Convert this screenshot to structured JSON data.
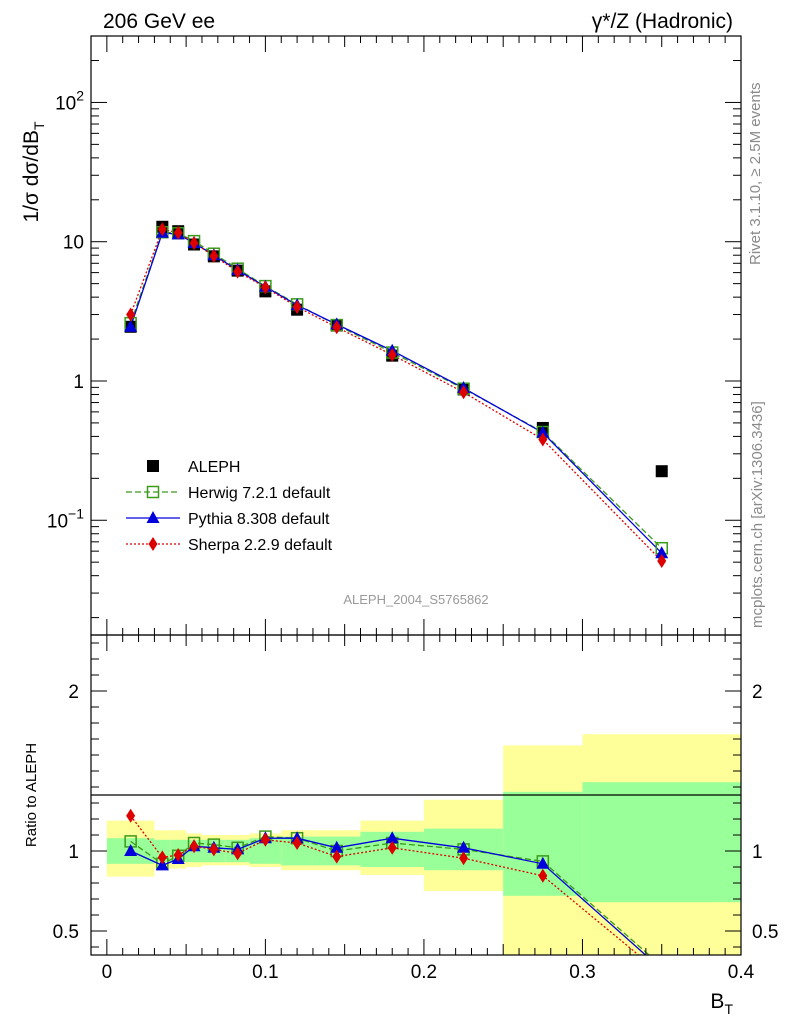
{
  "header": {
    "left": "206 GeV ee",
    "right": "γ*/Z (Hadronic)"
  },
  "side_labels": {
    "rivet": "Rivet 3.1.10, ≥ 2.5M events",
    "mcplots": "mcplots.cern.ch [arXiv:1306.3436]"
  },
  "watermark": "ALEPH_2004_S5765862",
  "colors": {
    "aleph": "#000000",
    "herwig": "#3a9a1a",
    "pythia": "#0000dd",
    "sherpa": "#dd0000",
    "band_inner": "#99ff99",
    "band_outer": "#ffff99"
  },
  "chart_data": [
    {
      "type": "scatter",
      "panel": "main",
      "ylabel": "1/σ  dσ/dB_T",
      "yscale": "log",
      "xlim": [
        -0.01,
        0.4
      ],
      "ylim": [
        0.015,
        300
      ],
      "y_ticks": [
        {
          "value": 0.1,
          "label": "10^-1"
        },
        {
          "value": 1,
          "label": "1"
        },
        {
          "value": 10,
          "label": "10"
        },
        {
          "value": 100,
          "label": "10^2"
        }
      ],
      "legend_position": "bottom-left",
      "series": [
        {
          "name": "ALEPH",
          "x": [
            0.015,
            0.035,
            0.045,
            0.055,
            0.0675,
            0.0825,
            0.1,
            0.12,
            0.145,
            0.18,
            0.225,
            0.275,
            0.35
          ],
          "y": [
            2.45,
            12.8,
            11.9,
            9.55,
            7.85,
            6.2,
            4.4,
            3.25,
            2.5,
            1.52,
            0.87,
            0.46,
            0.225
          ]
        },
        {
          "name": "Herwig 7.2.1 default",
          "x": [
            0.015,
            0.035,
            0.045,
            0.055,
            0.0675,
            0.0825,
            0.1,
            0.12,
            0.145,
            0.18,
            0.225,
            0.275,
            0.35
          ],
          "y": [
            2.6,
            11.7,
            11.5,
            10.1,
            8.2,
            6.4,
            4.8,
            3.55,
            2.52,
            1.6,
            0.88,
            0.43,
            0.063
          ]
        },
        {
          "name": "Pythia 8.308 default",
          "x": [
            0.015,
            0.035,
            0.045,
            0.055,
            0.0675,
            0.0825,
            0.1,
            0.12,
            0.145,
            0.18,
            0.225,
            0.275,
            0.35
          ],
          "y": [
            2.45,
            11.6,
            11.3,
            9.8,
            8.0,
            6.25,
            4.75,
            3.5,
            2.55,
            1.65,
            0.89,
            0.425,
            0.058
          ]
        },
        {
          "name": "Sherpa 2.2.9 default",
          "x": [
            0.015,
            0.035,
            0.045,
            0.055,
            0.0675,
            0.0825,
            0.1,
            0.12,
            0.145,
            0.18,
            0.225,
            0.275,
            0.35
          ],
          "y": [
            3.0,
            12.3,
            11.6,
            9.8,
            7.9,
            6.1,
            4.7,
            3.4,
            2.43,
            1.54,
            0.83,
            0.38,
            0.051
          ]
        }
      ]
    },
    {
      "type": "line",
      "panel": "ratio",
      "xlabel": "B_T",
      "ylabel": "Ratio to ALEPH",
      "xlim": [
        -0.01,
        0.4
      ],
      "ylim": [
        0.35,
        2.35
      ],
      "x_ticks": [
        0,
        0.1,
        0.2,
        0.3,
        0.4
      ],
      "x_tick_labels": [
        "0",
        "0.1",
        "0.2",
        "0.3",
        "0.4"
      ],
      "y_ticks": [
        0.5,
        1,
        2
      ],
      "y_tick_labels": [
        "0.5",
        "1",
        "2"
      ],
      "bands": {
        "edges": [
          0,
          0.03,
          0.04,
          0.05,
          0.06,
          0.075,
          0.09,
          0.11,
          0.13,
          0.16,
          0.2,
          0.25,
          0.3,
          0.4
        ],
        "inner_low": [
          0.92,
          0.93,
          0.93,
          0.93,
          0.93,
          0.93,
          0.92,
          0.91,
          0.91,
          0.9,
          0.88,
          0.72,
          0.68
        ],
        "inner_high": [
          1.08,
          1.07,
          1.07,
          1.07,
          1.07,
          1.07,
          1.08,
          1.09,
          1.09,
          1.12,
          1.14,
          1.37,
          1.43
        ],
        "outer_low": [
          0.84,
          0.89,
          0.89,
          0.9,
          0.91,
          0.91,
          0.9,
          0.88,
          0.88,
          0.85,
          0.75,
          0.2,
          0.2
        ],
        "outer_high": [
          1.19,
          1.13,
          1.13,
          1.11,
          1.1,
          1.1,
          1.11,
          1.13,
          1.13,
          1.19,
          1.32,
          1.66,
          1.73
        ]
      },
      "series": [
        {
          "name": "Herwig 7.2.1 default",
          "x": [
            0.015,
            0.035,
            0.045,
            0.055,
            0.0675,
            0.0825,
            0.1,
            0.12,
            0.145,
            0.18,
            0.225,
            0.275,
            0.35
          ],
          "y": [
            1.06,
            0.92,
            0.97,
            1.05,
            1.04,
            1.02,
            1.09,
            1.08,
            1.0,
            1.05,
            1.01,
            0.935,
            0.28
          ]
        },
        {
          "name": "Pythia 8.308 default",
          "x": [
            0.015,
            0.035,
            0.045,
            0.055,
            0.0675,
            0.0825,
            0.1,
            0.12,
            0.145,
            0.18,
            0.225,
            0.275,
            0.35
          ],
          "y": [
            1.0,
            0.91,
            0.95,
            1.03,
            1.02,
            1.01,
            1.08,
            1.08,
            1.02,
            1.08,
            1.02,
            0.92,
            0.26
          ]
        },
        {
          "name": "Sherpa 2.2.9 default",
          "x": [
            0.015,
            0.035,
            0.045,
            0.055,
            0.0675,
            0.0825,
            0.1,
            0.12,
            0.145,
            0.18,
            0.225,
            0.275,
            0.35
          ],
          "y": [
            1.22,
            0.96,
            0.975,
            1.03,
            1.01,
            0.985,
            1.07,
            1.05,
            0.965,
            1.02,
            0.955,
            0.845,
            0.23
          ]
        }
      ]
    }
  ]
}
